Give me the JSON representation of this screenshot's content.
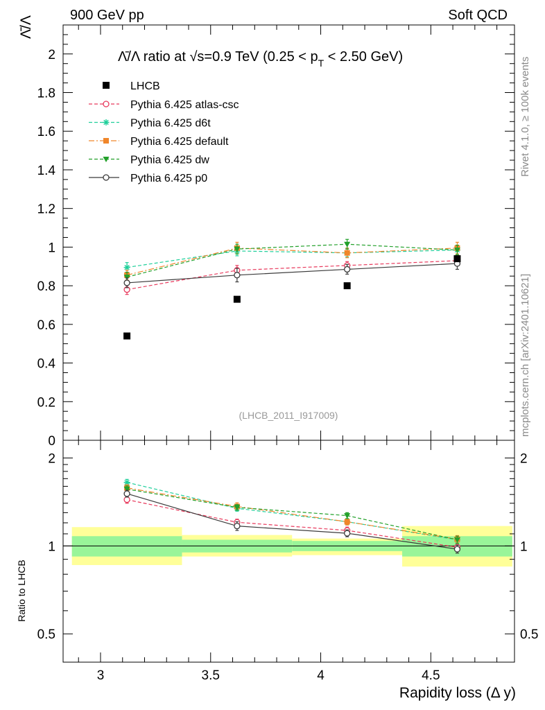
{
  "header": {
    "left": "900 GeV pp",
    "right": "Soft QCD"
  },
  "side_labels": {
    "rivet": "Rivet 4.1.0, ≥ 100k events",
    "mcplots": "mcplots.cern.ch [arXiv:2401.10621]"
  },
  "colors": {
    "lhcb": "#000000",
    "atlas_csc": "#e8395c",
    "d6t": "#1fcf9a",
    "default": "#f0862a",
    "dw": "#22a02a",
    "p0": "#3a3a3a",
    "band_inner": "#99f599",
    "band_outer": "#ffff99"
  },
  "chart_data": [
    {
      "id": "main",
      "type": "scatter",
      "title": "Λ̄/Λ ratio at √s=0.9 TeV (0.25 < p_T < 2.50 GeV)",
      "title_parts": {
        "prefix": "Λ̄/Λ ratio at ",
        "sqrt": "√",
        "s": "s=0.9 TeV (0.25 < p",
        "sub": "T",
        "suffix": " < 2.50 GeV)"
      },
      "ylabel": "Λ̄/Λ",
      "xlim": [
        2.83,
        4.88
      ],
      "ylim": [
        0,
        2.15
      ],
      "yticks": [
        0,
        0.2,
        0.4,
        0.6,
        0.8,
        1,
        1.2,
        1.4,
        1.6,
        1.8,
        2
      ],
      "ytick_labels": [
        "0",
        "0.2",
        "0.4",
        "0.6",
        "0.8",
        "1",
        "1.2",
        "1.4",
        "1.6",
        "1.8",
        "2"
      ],
      "analysis_tag": "(LHCB_2011_I917009)",
      "legend_position": "top-left",
      "x": [
        3.12,
        3.62,
        4.12,
        4.62
      ],
      "bin_edges": [
        2.87,
        3.37,
        3.87,
        4.37,
        4.87
      ],
      "data": {
        "name": "LHCB",
        "values": [
          0.54,
          0.73,
          0.8,
          0.94
        ]
      },
      "series": [
        {
          "key": "atlas_csc",
          "name": "Pythia 6.425 atlas-csc",
          "values": [
            0.78,
            0.88,
            0.905,
            0.93
          ],
          "errors": [
            0.025,
            0.025,
            0.02,
            0.025
          ],
          "marker": "open-circle",
          "dash": "5,3"
        },
        {
          "key": "d6t",
          "name": "Pythia 6.425 d6t",
          "values": [
            0.895,
            0.98,
            0.97,
            0.985
          ],
          "errors": [
            0.025,
            0.025,
            0.02,
            0.025
          ],
          "marker": "star",
          "dash": "5,3"
        },
        {
          "key": "default",
          "name": "Pythia 6.425 default",
          "values": [
            0.855,
            0.995,
            0.97,
            0.995
          ],
          "errors": [
            0.025,
            0.03,
            0.025,
            0.03
          ],
          "marker": "square",
          "dash": "8,3,2,3"
        },
        {
          "key": "dw",
          "name": "Pythia 6.425 dw",
          "values": [
            0.845,
            0.99,
            1.015,
            0.985
          ],
          "errors": [
            0.025,
            0.025,
            0.025,
            0.025
          ],
          "marker": "triangle-down",
          "dash": "5,3"
        },
        {
          "key": "p0",
          "name": "Pythia 6.425 p0",
          "values": [
            0.815,
            0.855,
            0.885,
            0.915
          ],
          "errors": [
            0.025,
            0.035,
            0.025,
            0.03
          ],
          "marker": "open-circle",
          "dash": ""
        }
      ]
    },
    {
      "id": "ratio",
      "type": "scatter",
      "ylabel": "Ratio to LHCB",
      "xlabel": "Rapidity loss (Δ y)",
      "xlim": [
        2.83,
        4.88
      ],
      "ylim": [
        0.4,
        2.3
      ],
      "yscale": "log",
      "xticks": [
        3,
        3.5,
        4,
        4.5
      ],
      "xtick_labels": [
        "3",
        "3.5",
        "4",
        "4.5"
      ],
      "yticks": [
        0.5,
        1,
        2
      ],
      "ytick_labels": [
        "0.5",
        "1",
        "2"
      ],
      "x": [
        3.12,
        3.62,
        4.12,
        4.62
      ],
      "bin_edges": [
        2.87,
        3.37,
        3.87,
        4.37,
        4.87
      ],
      "band_inner": [
        [
          0.92,
          1.08
        ],
        [
          0.95,
          1.05
        ],
        [
          0.96,
          1.04
        ],
        [
          0.92,
          1.08
        ]
      ],
      "band_outer": [
        [
          0.86,
          1.16
        ],
        [
          0.92,
          1.09
        ],
        [
          0.93,
          1.06
        ],
        [
          0.85,
          1.17
        ]
      ],
      "series": [
        {
          "key": "atlas_csc",
          "name": "Pythia 6.425 atlas-csc",
          "values": [
            1.44,
            1.205,
            1.13,
            0.99
          ],
          "errors": [
            0.04,
            0.03,
            0.03,
            0.03
          ],
          "marker": "open-circle",
          "dash": "5,3"
        },
        {
          "key": "d6t",
          "name": "Pythia 6.425 d6t",
          "values": [
            1.65,
            1.345,
            1.21,
            1.05
          ],
          "errors": [
            0.04,
            0.03,
            0.03,
            0.03
          ],
          "marker": "star",
          "dash": "5,3"
        },
        {
          "key": "default",
          "name": "Pythia 6.425 default",
          "values": [
            1.58,
            1.365,
            1.21,
            1.055
          ],
          "errors": [
            0.04,
            0.04,
            0.03,
            0.03
          ],
          "marker": "square",
          "dash": "8,3,2,3"
        },
        {
          "key": "dw",
          "name": "Pythia 6.425 dw",
          "values": [
            1.565,
            1.355,
            1.27,
            1.05
          ],
          "errors": [
            0.04,
            0.03,
            0.03,
            0.03
          ],
          "marker": "triangle-down",
          "dash": "5,3"
        },
        {
          "key": "p0",
          "name": "Pythia 6.425 p0",
          "values": [
            1.51,
            1.17,
            1.105,
            0.975
          ],
          "errors": [
            0.04,
            0.04,
            0.03,
            0.03
          ],
          "marker": "open-circle",
          "dash": ""
        }
      ]
    }
  ]
}
